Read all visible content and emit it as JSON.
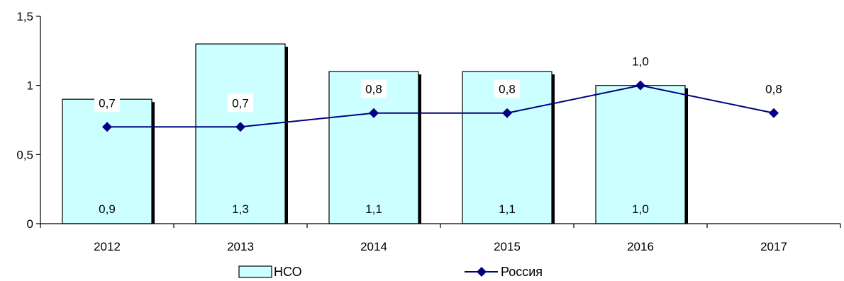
{
  "chart_data": {
    "type": "bar",
    "categories": [
      "2012",
      "2013",
      "2014",
      "2015",
      "2016",
      "2017"
    ],
    "ylim": [
      0,
      1.5
    ],
    "y_ticks": [
      "0",
      "0,5",
      "1",
      "1,5"
    ],
    "y_tick_values": [
      0,
      0.5,
      1,
      1.5
    ],
    "grid": false,
    "legend_position": "bottom",
    "series": [
      {
        "name": "НСО",
        "kind": "bar",
        "values": [
          0.9,
          1.3,
          1.1,
          1.1,
          1.0,
          null
        ],
        "labels": [
          "0,9",
          "1,3",
          "1,1",
          "1,1",
          "1,0",
          ""
        ],
        "color": "#ccffff"
      },
      {
        "name": "Россия",
        "kind": "line",
        "values": [
          0.7,
          0.7,
          0.8,
          0.8,
          1.0,
          0.8
        ],
        "labels": [
          "0,7",
          "0,7",
          "0,8",
          "0,8",
          "1,0",
          "0,8"
        ],
        "color": "#000080"
      }
    ]
  }
}
